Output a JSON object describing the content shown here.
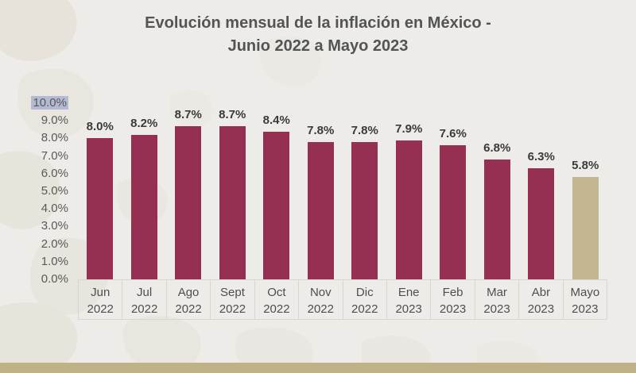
{
  "title": {
    "line1": "Evolución mensual de la inflación en México -",
    "line2": "Junio 2022 a Mayo 2023"
  },
  "chart_data": {
    "type": "bar",
    "title": "Evolución mensual de la inflación en México - Junio 2022 a Mayo 2023",
    "xlabel": "",
    "ylabel": "",
    "ylim": [
      0,
      10
    ],
    "grid": false,
    "legend": false,
    "y_ticks": [
      {
        "value": 10,
        "label": "10.0%",
        "highlighted": true
      },
      {
        "value": 9,
        "label": "9.0%",
        "highlighted": false
      },
      {
        "value": 8,
        "label": "8.0%",
        "highlighted": false
      },
      {
        "value": 7,
        "label": "7.0%",
        "highlighted": false
      },
      {
        "value": 6,
        "label": "6.0%",
        "highlighted": false
      },
      {
        "value": 5,
        "label": "5.0%",
        "highlighted": false
      },
      {
        "value": 4,
        "label": "4.0%",
        "highlighted": false
      },
      {
        "value": 3,
        "label": "3.0%",
        "highlighted": false
      },
      {
        "value": 2,
        "label": "2.0%",
        "highlighted": false
      },
      {
        "value": 1,
        "label": "1.0%",
        "highlighted": false
      },
      {
        "value": 0,
        "label": "0.0%",
        "highlighted": false
      }
    ],
    "categories": [
      {
        "month": "Jun",
        "year": "2022"
      },
      {
        "month": "Jul",
        "year": "2022"
      },
      {
        "month": "Ago",
        "year": "2022"
      },
      {
        "month": "Sept",
        "year": "2022"
      },
      {
        "month": "Oct",
        "year": "2022"
      },
      {
        "month": "Nov",
        "year": "2022"
      },
      {
        "month": "Dic",
        "year": "2022"
      },
      {
        "month": "Ene",
        "year": "2023"
      },
      {
        "month": "Feb",
        "year": "2023"
      },
      {
        "month": "Mar",
        "year": "2023"
      },
      {
        "month": "Abr",
        "year": "2023"
      },
      {
        "month": "Mayo",
        "year": "2023"
      }
    ],
    "values": [
      8.0,
      8.2,
      8.7,
      8.7,
      8.4,
      7.8,
      7.8,
      7.9,
      7.6,
      6.8,
      6.3,
      5.8
    ],
    "value_labels": [
      "8.0%",
      "8.2%",
      "8.7%",
      "8.7%",
      "8.4%",
      "7.8%",
      "7.8%",
      "7.9%",
      "7.6%",
      "6.8%",
      "6.3%",
      "5.8%"
    ],
    "series_color": "#953052",
    "highlighted_bar_index": 11,
    "highlighted_bar_color": "#C3B693"
  },
  "colors": {
    "background": "#EDECE9",
    "pattern": "#E5E2D8",
    "bar_maroon": "#953052",
    "bar_tan": "#C3B693",
    "tick_highlight": "#B5BAD3",
    "footer_strip": "#BFB287",
    "title_text": "#545454",
    "axis_text": "#595959",
    "value_text": "#3A3A3A",
    "table_border": "#D9D6D1"
  }
}
